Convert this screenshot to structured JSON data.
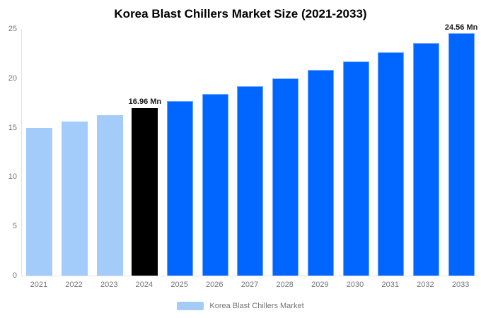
{
  "chart": {
    "title": "Korea Blast Chillers Market Size (2021-2033)",
    "legend": {
      "label": "Korea Blast Chillers Market"
    }
  },
  "chart_data": {
    "type": "bar",
    "title": "Korea Blast Chillers Market Size (2021-2033)",
    "categories": [
      "2021",
      "2022",
      "2023",
      "2024",
      "2025",
      "2026",
      "2027",
      "2028",
      "2029",
      "2030",
      "2031",
      "2032",
      "2033"
    ],
    "values": [
      14.99,
      15.62,
      16.28,
      16.96,
      17.67,
      18.42,
      19.19,
      20.0,
      20.84,
      21.71,
      22.63,
      23.58,
      24.56
    ],
    "unit": "Mn",
    "xlabel": "",
    "ylabel": "",
    "ylim": [
      0,
      25
    ],
    "yticks": [
      0,
      5,
      10,
      15,
      20,
      25
    ],
    "grid": false,
    "legend_position": "bottom",
    "palette": {
      "historical": "#a3ccfa",
      "current": "#000000",
      "forecast": "#0066ff"
    },
    "color_roles": [
      "historical",
      "historical",
      "historical",
      "current",
      "forecast",
      "forecast",
      "forecast",
      "forecast",
      "forecast",
      "forecast",
      "forecast",
      "forecast",
      "forecast"
    ],
    "annotations": [
      {
        "category": "2024",
        "text": "16.96 Mn"
      },
      {
        "category": "2033",
        "text": "24.56 Mn"
      }
    ],
    "text_colors": {
      "title": "#000000",
      "ticks": "#757575",
      "annotation": "#1a1a1a",
      "axis_line": "#e2e2e2"
    }
  }
}
